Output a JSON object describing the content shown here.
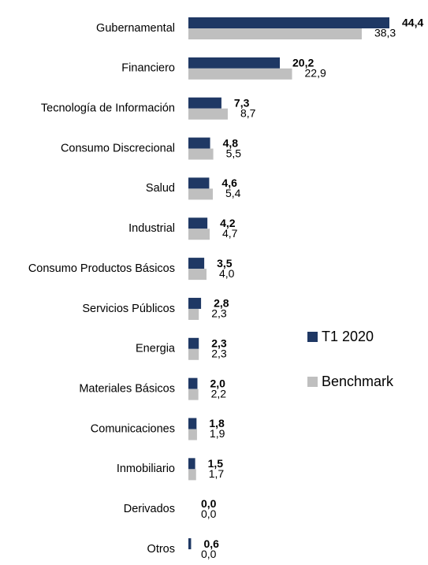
{
  "chart_data": {
    "type": "bar",
    "orientation": "horizontal",
    "categories": [
      "Gubernamental",
      "Financiero",
      "Tecnología de Información",
      "Consumo Discrecional",
      "Salud",
      "Industrial",
      "Consumo Productos Básicos",
      "Servicios Públicos",
      "Energia",
      "Materiales Básicos",
      "Comunicaciones",
      "Inmobiliario",
      "Derivados",
      "Otros"
    ],
    "series": [
      {
        "name": "T1 2020",
        "color": "#1f3864",
        "values": [
          44.4,
          20.2,
          7.3,
          4.8,
          4.6,
          4.2,
          3.5,
          2.8,
          2.3,
          2.0,
          1.8,
          1.5,
          0.0,
          0.6
        ],
        "value_labels": [
          "44,4",
          "20,2",
          "7,3",
          "4,8",
          "4,6",
          "4,2",
          "3,5",
          "2,8",
          "2,3",
          "2,0",
          "1,8",
          "1,5",
          "0,0",
          "0,6"
        ]
      },
      {
        "name": "Benchmark",
        "color": "#bfbfbf",
        "values": [
          38.3,
          22.9,
          8.7,
          5.5,
          5.4,
          4.7,
          4.0,
          2.3,
          2.3,
          2.2,
          1.9,
          1.7,
          0.0,
          0.0
        ],
        "value_labels": [
          "38,3",
          "22,9",
          "8,7",
          "5,5",
          "5,4",
          "4,7",
          "4,0",
          "2,3",
          "2,3",
          "2,2",
          "1,9",
          "1,7",
          "0,0",
          "0,0"
        ]
      }
    ],
    "legend": "right"
  }
}
